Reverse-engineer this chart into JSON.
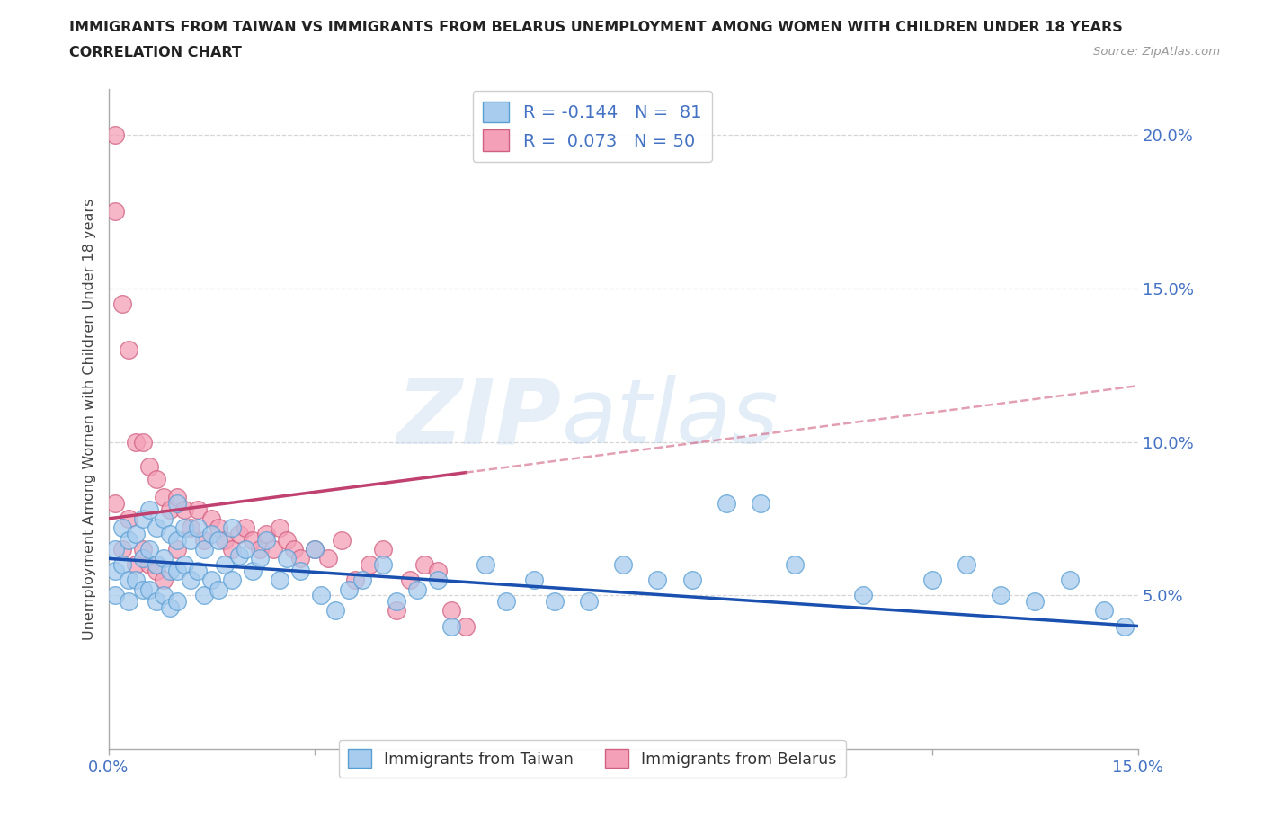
{
  "title_line1": "IMMIGRANTS FROM TAIWAN VS IMMIGRANTS FROM BELARUS UNEMPLOYMENT AMONG WOMEN WITH CHILDREN UNDER 18 YEARS",
  "title_line2": "CORRELATION CHART",
  "source": "Source: ZipAtlas.com",
  "ylabel": "Unemployment Among Women with Children Under 18 years",
  "xlim": [
    0.0,
    0.15
  ],
  "ylim": [
    0.0,
    0.215
  ],
  "ytick_positions": [
    0.05,
    0.1,
    0.15,
    0.2
  ],
  "ytick_labels": [
    "5.0%",
    "10.0%",
    "15.0%",
    "20.0%"
  ],
  "taiwan_color": "#A8CCEE",
  "taiwan_edge": "#5A9FD4",
  "belarus_color": "#F4A0B8",
  "belarus_edge": "#D06080",
  "trend_taiwan_color": "#1A50B0",
  "trend_belarus_solid": "#C04070",
  "trend_belarus_dash": "#D06080",
  "legend_taiwan_R": "-0.144",
  "legend_taiwan_N": "81",
  "legend_belarus_R": "0.073",
  "legend_belarus_N": "50",
  "watermark_zip": "ZIP",
  "watermark_atlas": "atlas",
  "taiwan_x": [
    0.001,
    0.001,
    0.001,
    0.002,
    0.002,
    0.003,
    0.003,
    0.003,
    0.004,
    0.004,
    0.005,
    0.005,
    0.005,
    0.006,
    0.006,
    0.006,
    0.007,
    0.007,
    0.007,
    0.008,
    0.008,
    0.008,
    0.009,
    0.009,
    0.009,
    0.01,
    0.01,
    0.01,
    0.01,
    0.011,
    0.011,
    0.012,
    0.012,
    0.013,
    0.013,
    0.014,
    0.014,
    0.015,
    0.015,
    0.016,
    0.016,
    0.017,
    0.018,
    0.018,
    0.019,
    0.02,
    0.021,
    0.022,
    0.023,
    0.025,
    0.026,
    0.028,
    0.03,
    0.031,
    0.033,
    0.035,
    0.037,
    0.04,
    0.042,
    0.045,
    0.048,
    0.05,
    0.055,
    0.058,
    0.062,
    0.065,
    0.07,
    0.075,
    0.08,
    0.085,
    0.09,
    0.095,
    0.1,
    0.11,
    0.12,
    0.125,
    0.13,
    0.135,
    0.14,
    0.145,
    0.148
  ],
  "taiwan_y": [
    0.065,
    0.058,
    0.05,
    0.072,
    0.06,
    0.068,
    0.055,
    0.048,
    0.07,
    0.055,
    0.075,
    0.062,
    0.052,
    0.078,
    0.065,
    0.052,
    0.072,
    0.06,
    0.048,
    0.075,
    0.062,
    0.05,
    0.07,
    0.058,
    0.046,
    0.08,
    0.068,
    0.058,
    0.048,
    0.072,
    0.06,
    0.068,
    0.055,
    0.072,
    0.058,
    0.065,
    0.05,
    0.07,
    0.055,
    0.068,
    0.052,
    0.06,
    0.072,
    0.055,
    0.063,
    0.065,
    0.058,
    0.062,
    0.068,
    0.055,
    0.062,
    0.058,
    0.065,
    0.05,
    0.045,
    0.052,
    0.055,
    0.06,
    0.048,
    0.052,
    0.055,
    0.04,
    0.06,
    0.048,
    0.055,
    0.048,
    0.048,
    0.06,
    0.055,
    0.055,
    0.08,
    0.08,
    0.06,
    0.05,
    0.055,
    0.06,
    0.05,
    0.048,
    0.055,
    0.045,
    0.04
  ],
  "belarus_x": [
    0.001,
    0.001,
    0.001,
    0.002,
    0.002,
    0.003,
    0.003,
    0.004,
    0.004,
    0.005,
    0.005,
    0.006,
    0.006,
    0.007,
    0.007,
    0.008,
    0.008,
    0.009,
    0.01,
    0.01,
    0.011,
    0.012,
    0.013,
    0.014,
    0.015,
    0.016,
    0.017,
    0.018,
    0.019,
    0.02,
    0.021,
    0.022,
    0.023,
    0.024,
    0.025,
    0.026,
    0.027,
    0.028,
    0.03,
    0.032,
    0.034,
    0.036,
    0.038,
    0.04,
    0.042,
    0.044,
    0.046,
    0.048,
    0.05,
    0.052
  ],
  "belarus_y": [
    0.2,
    0.175,
    0.08,
    0.145,
    0.065,
    0.13,
    0.075,
    0.1,
    0.06,
    0.1,
    0.065,
    0.092,
    0.06,
    0.088,
    0.058,
    0.082,
    0.055,
    0.078,
    0.082,
    0.065,
    0.078,
    0.072,
    0.078,
    0.068,
    0.075,
    0.072,
    0.068,
    0.065,
    0.07,
    0.072,
    0.068,
    0.065,
    0.07,
    0.065,
    0.072,
    0.068,
    0.065,
    0.062,
    0.065,
    0.062,
    0.068,
    0.055,
    0.06,
    0.065,
    0.045,
    0.055,
    0.06,
    0.058,
    0.045,
    0.04
  ]
}
